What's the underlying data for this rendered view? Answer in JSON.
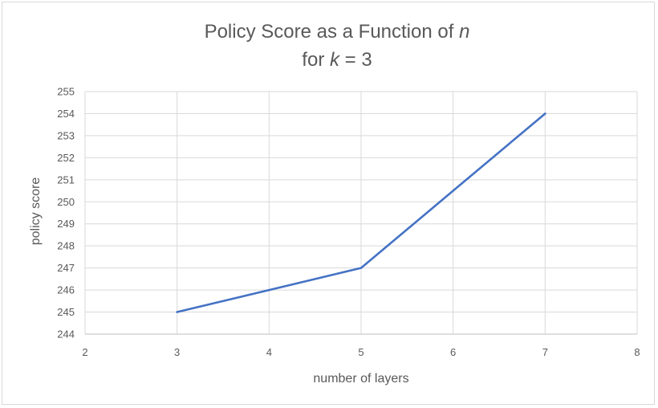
{
  "chart_data": {
    "type": "line",
    "title_line1_prefix": "Policy Score as a Function of ",
    "title_line1_var": "n",
    "title_line2_prefix": "for ",
    "title_line2_var": "k",
    "title_line2_suffix": " = 3",
    "xlabel": "number of layers",
    "ylabel": "policy score",
    "xlim": [
      2,
      8
    ],
    "ylim": [
      244,
      255
    ],
    "x_ticks": [
      2,
      3,
      4,
      5,
      6,
      7,
      8
    ],
    "y_ticks": [
      244,
      245,
      246,
      247,
      248,
      249,
      250,
      251,
      252,
      253,
      254,
      255
    ],
    "grid": true,
    "legend": "none",
    "series": [
      {
        "color": "#4472c4",
        "points": [
          {
            "x": 3,
            "y": 245
          },
          {
            "x": 4,
            "y": 246
          },
          {
            "x": 5,
            "y": 247
          },
          {
            "x": 6,
            "y": 250.5
          },
          {
            "x": 7,
            "y": 254
          }
        ]
      }
    ]
  }
}
